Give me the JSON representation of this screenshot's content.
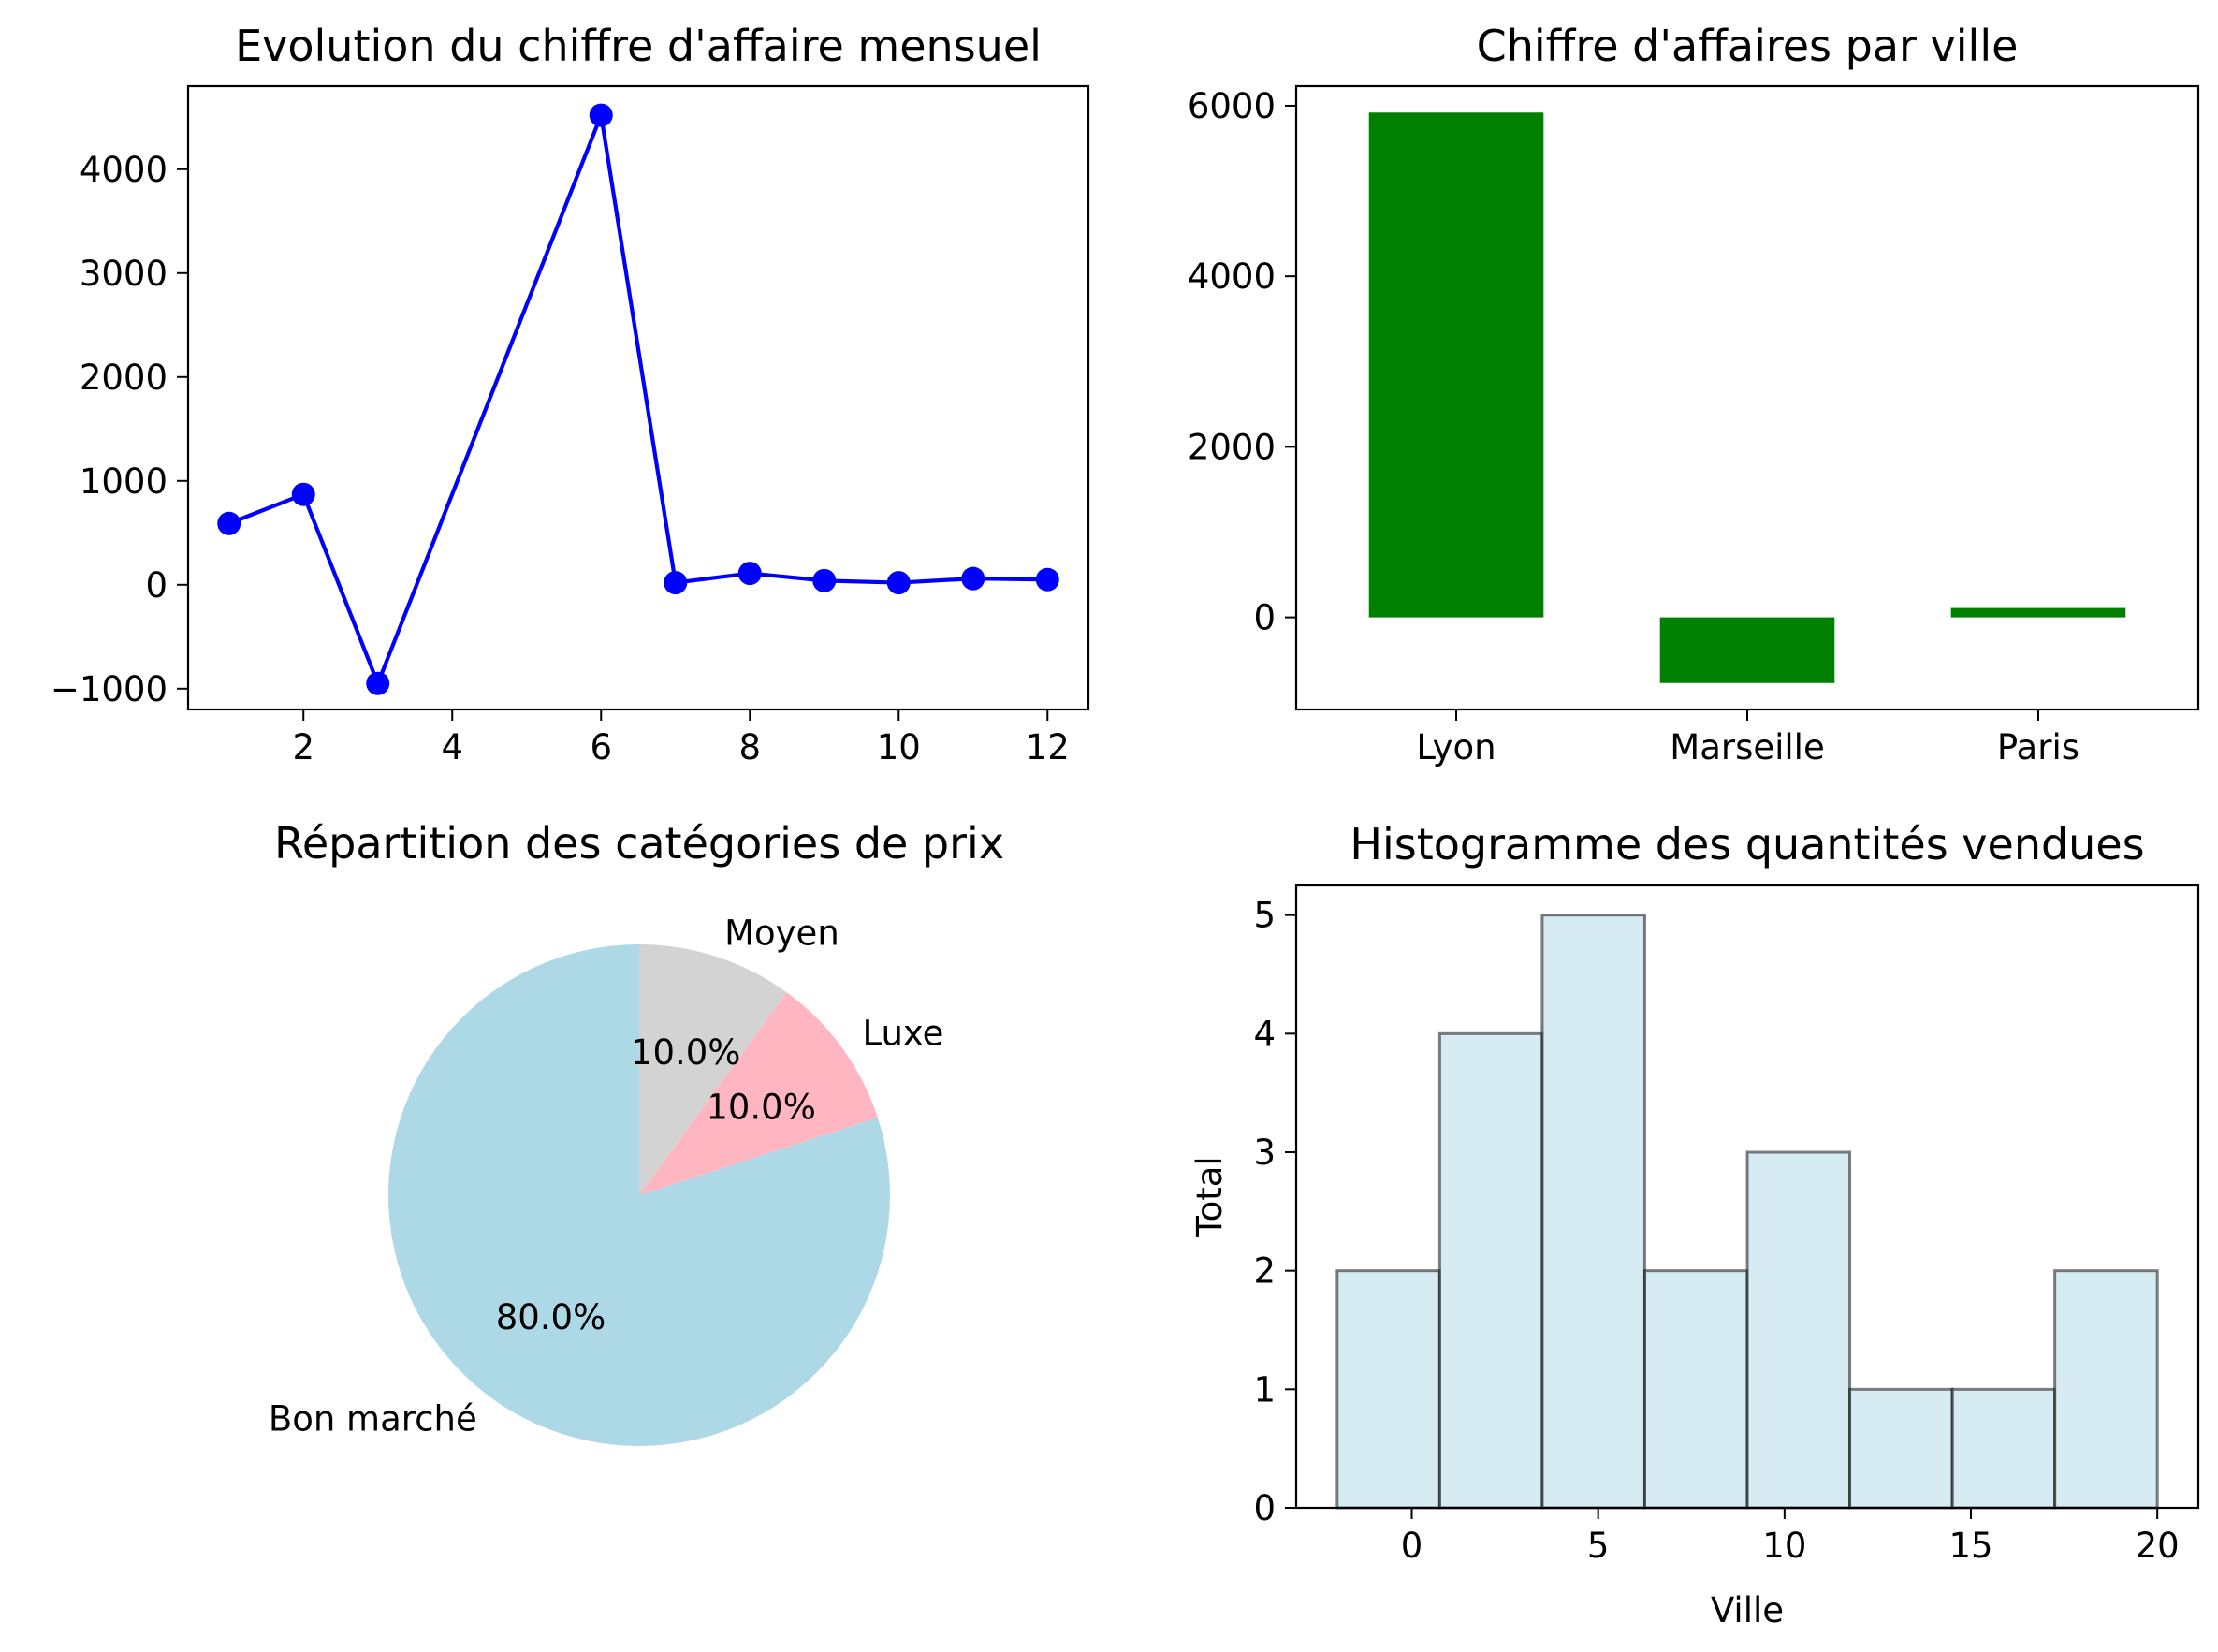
{
  "chart_data": [
    {
      "type": "line",
      "title": "Evolution du chiffre d'affaire mensuel",
      "xlabel": "",
      "ylabel": "",
      "x": [
        1,
        2,
        3,
        6,
        7,
        8,
        9,
        10,
        11,
        12
      ],
      "values": [
        590,
        870,
        -950,
        4520,
        20,
        110,
        40,
        20,
        60,
        50
      ],
      "xlim": [
        0.45,
        12.55
      ],
      "ylim": [
        -1200,
        4800
      ],
      "xticks": [
        2,
        4,
        6,
        8,
        10,
        12
      ],
      "yticks": [
        -1000,
        0,
        1000,
        2000,
        3000,
        4000
      ],
      "ytick_labels": [
        "−1000",
        "0",
        "1000",
        "2000",
        "3000",
        "4000"
      ],
      "color": "#0000ff",
      "marker": "circle"
    },
    {
      "type": "bar",
      "title": "Chiffre d'affaires par ville",
      "xlabel": "",
      "ylabel": "",
      "categories": [
        "Lyon",
        "Marseille",
        "Paris"
      ],
      "values": [
        5920,
        -770,
        110
      ],
      "ylim": [
        -1080,
        6230
      ],
      "yticks": [
        0,
        2000,
        4000,
        6000
      ],
      "color": "#008000"
    },
    {
      "type": "pie",
      "title": "Répartition des catégories de prix",
      "slices": [
        {
          "label": "Bon marché",
          "value": 80.0,
          "pct": "80.0%",
          "color": "#add8e6"
        },
        {
          "label": "Luxe",
          "value": 10.0,
          "pct": "10.0%",
          "color": "#ffb6c1"
        },
        {
          "label": "Moyen",
          "value": 10.0,
          "pct": "10.0%",
          "color": "#d3d3d3"
        }
      ],
      "startangle": 90,
      "direction": "counterclockwise"
    },
    {
      "type": "histogram",
      "title": "Histogramme des quantités vendues",
      "xlabel": "Ville",
      "ylabel": "Total",
      "bin_edges": [
        -2,
        0.75,
        3.5,
        6.25,
        9,
        11.75,
        14.5,
        17.25,
        20
      ],
      "counts": [
        2,
        4,
        5,
        2,
        3,
        1,
        1,
        2
      ],
      "xlim": [
        -3.1,
        21.1
      ],
      "ylim": [
        0,
        5.25
      ],
      "xticks": [
        0,
        5,
        10,
        15,
        20
      ],
      "yticks": [
        0,
        1,
        2,
        3,
        4,
        5
      ],
      "color": "#add8e6",
      "edgecolor": "#000000"
    }
  ]
}
